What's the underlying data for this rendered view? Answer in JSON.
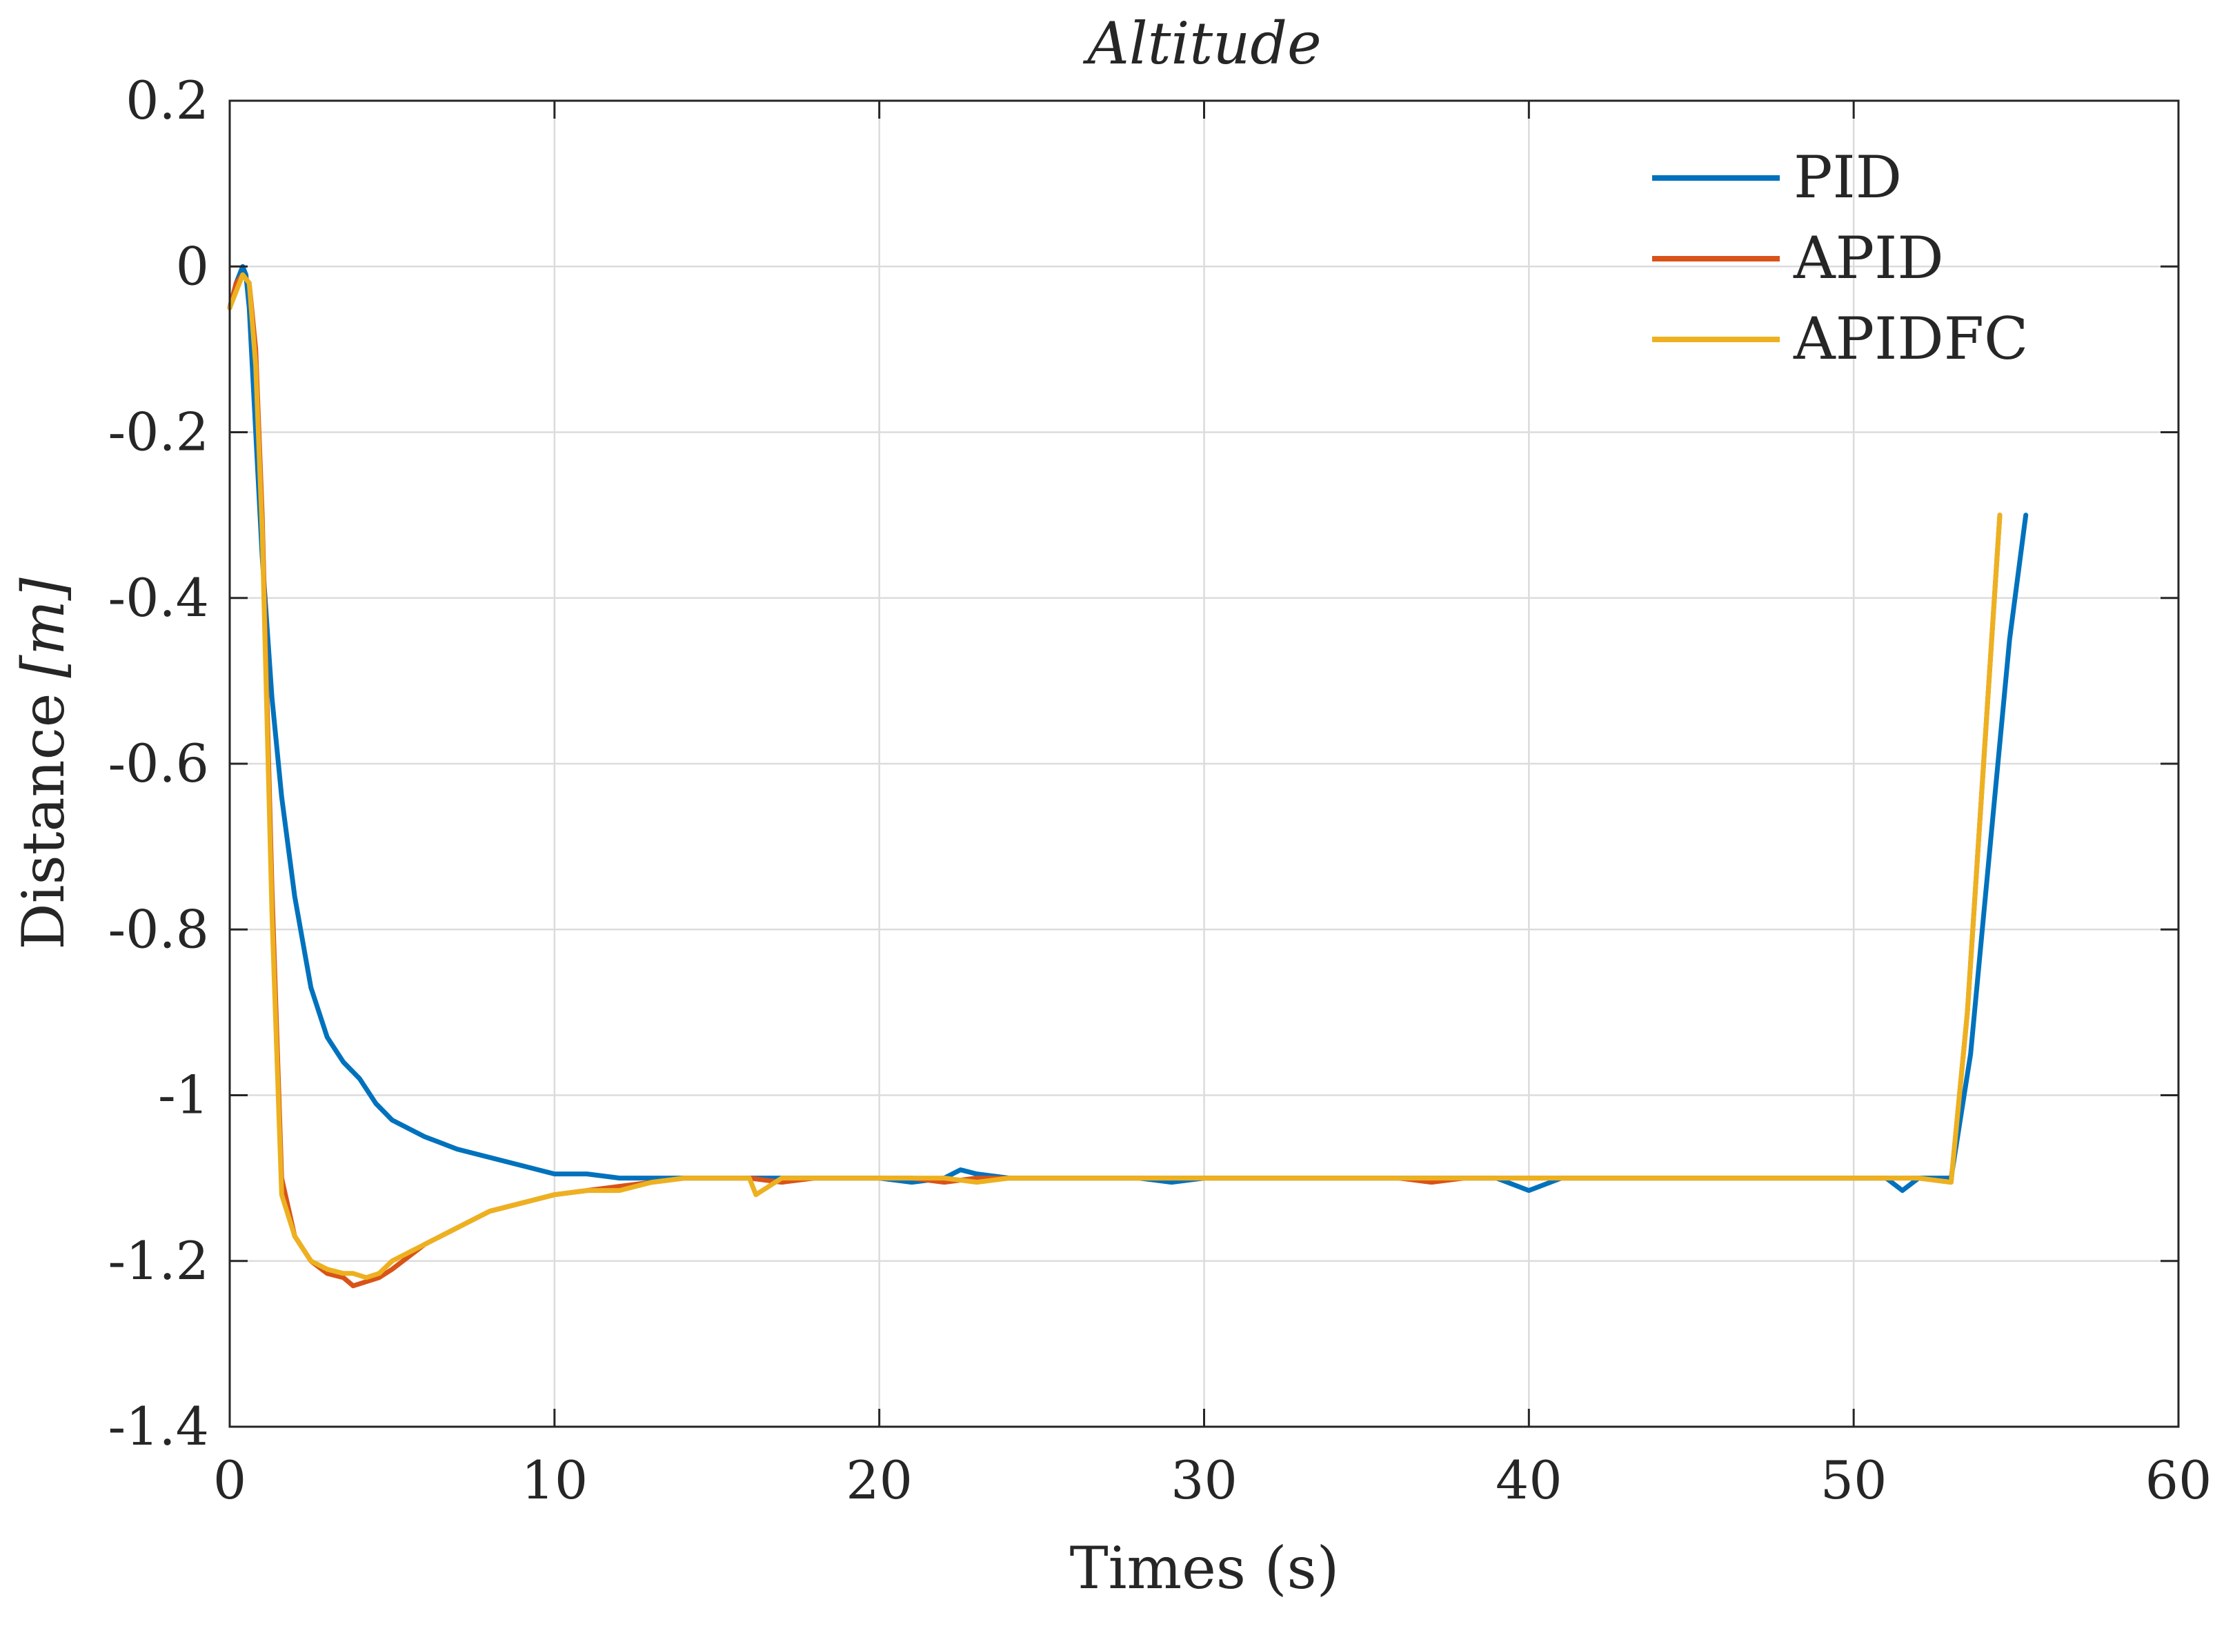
{
  "chart_data": {
    "type": "line",
    "title": "Altitude",
    "xlabel": "Times (s)",
    "ylabel": "Distance [m]",
    "ylabel_parts": {
      "text": "Distance",
      "unit": "[m]"
    },
    "xlim": [
      0,
      60
    ],
    "ylim": [
      -1.4,
      0.2
    ],
    "xticks": [
      0,
      10,
      20,
      30,
      40,
      50,
      60
    ],
    "xtick_labels": [
      "0",
      "10",
      "20",
      "30",
      "40",
      "50",
      "60"
    ],
    "yticks": [
      0.2,
      0,
      -0.2,
      -0.4,
      -0.6,
      -0.8,
      -1,
      -1.2,
      -1.4
    ],
    "ytick_labels": [
      "0.2",
      "0",
      "-0.2",
      "-0.4",
      "-0.6",
      "-0.8",
      "-1",
      "-1.2",
      "-1.4"
    ],
    "grid": true,
    "legend_position": "top-right",
    "series": [
      {
        "name": "PID",
        "color": "#0072BD",
        "x": [
          0,
          0.2,
          0.4,
          0.5,
          0.6,
          0.8,
          1.0,
          1.3,
          1.6,
          2.0,
          2.5,
          3.0,
          3.5,
          4.0,
          4.5,
          5.0,
          6.0,
          7.0,
          8.0,
          9.0,
          10.0,
          11.0,
          12.0,
          13.0,
          14.0,
          15.0,
          16.0,
          17.0,
          18.0,
          19.0,
          20.0,
          21.0,
          22.0,
          22.5,
          23.0,
          24.0,
          25.0,
          26.0,
          27.0,
          28.0,
          29.0,
          30.0,
          31.0,
          32.0,
          33.0,
          34.0,
          35.0,
          36.0,
          37.0,
          38.0,
          39.0,
          40.0,
          41.0,
          42.0,
          43.0,
          44.0,
          45.0,
          46.0,
          47.0,
          48.0,
          49.0,
          50.0,
          51.0,
          51.5,
          52.0,
          53.0,
          53.6,
          54.2,
          54.8,
          55.3
        ],
        "values": [
          -0.05,
          -0.02,
          0.0,
          -0.01,
          -0.05,
          -0.2,
          -0.35,
          -0.52,
          -0.64,
          -0.76,
          -0.87,
          -0.93,
          -0.96,
          -0.98,
          -1.01,
          -1.03,
          -1.05,
          -1.065,
          -1.075,
          -1.085,
          -1.095,
          -1.095,
          -1.1,
          -1.1,
          -1.1,
          -1.1,
          -1.1,
          -1.1,
          -1.1,
          -1.1,
          -1.1,
          -1.105,
          -1.1,
          -1.09,
          -1.095,
          -1.1,
          -1.1,
          -1.1,
          -1.1,
          -1.1,
          -1.105,
          -1.1,
          -1.1,
          -1.1,
          -1.1,
          -1.1,
          -1.1,
          -1.1,
          -1.1,
          -1.1,
          -1.1,
          -1.115,
          -1.1,
          -1.1,
          -1.1,
          -1.1,
          -1.1,
          -1.1,
          -1.1,
          -1.1,
          -1.1,
          -1.1,
          -1.1,
          -1.115,
          -1.1,
          -1.1,
          -0.95,
          -0.7,
          -0.45,
          -0.3
        ]
      },
      {
        "name": "APID",
        "color": "#D95319",
        "x": [
          0,
          0.2,
          0.4,
          0.6,
          0.8,
          1.0,
          1.3,
          1.6,
          2.0,
          2.5,
          3.0,
          3.5,
          3.8,
          4.2,
          4.6,
          5.0,
          6.0,
          7.0,
          8.0,
          9.0,
          10.0,
          11.0,
          12.0,
          13.0,
          14.0,
          15.0,
          16.0,
          17.0,
          18.0,
          19.0,
          20.0,
          21.0,
          22.0,
          23.0,
          24.0,
          25.0,
          26.0,
          27.0,
          28.0,
          29.0,
          30.0,
          31.0,
          32.0,
          33.0,
          34.0,
          35.0,
          36.0,
          37.0,
          38.0,
          39.0,
          40.0,
          41.0,
          42.0,
          43.0,
          44.0,
          45.0,
          46.0,
          47.0,
          48.0,
          49.0,
          50.0,
          51.0,
          52.0,
          53.0,
          53.5,
          54.0,
          54.5
        ],
        "values": [
          -0.05,
          -0.02,
          -0.01,
          -0.02,
          -0.1,
          -0.3,
          -0.75,
          -1.1,
          -1.17,
          -1.2,
          -1.215,
          -1.22,
          -1.23,
          -1.225,
          -1.22,
          -1.21,
          -1.18,
          -1.16,
          -1.14,
          -1.13,
          -1.12,
          -1.115,
          -1.11,
          -1.105,
          -1.1,
          -1.1,
          -1.1,
          -1.105,
          -1.1,
          -1.1,
          -1.1,
          -1.1,
          -1.105,
          -1.1,
          -1.1,
          -1.1,
          -1.1,
          -1.1,
          -1.1,
          -1.1,
          -1.1,
          -1.1,
          -1.1,
          -1.1,
          -1.1,
          -1.1,
          -1.1,
          -1.105,
          -1.1,
          -1.1,
          -1.1,
          -1.1,
          -1.1,
          -1.1,
          -1.1,
          -1.1,
          -1.1,
          -1.1,
          -1.1,
          -1.1,
          -1.1,
          -1.1,
          -1.1,
          -1.105,
          -0.9,
          -0.6,
          -0.3
        ]
      },
      {
        "name": "APIDFC",
        "color": "#EDB120",
        "x": [
          0,
          0.2,
          0.4,
          0.6,
          0.8,
          1.0,
          1.3,
          1.6,
          2.0,
          2.5,
          3.0,
          3.5,
          3.8,
          4.2,
          4.6,
          5.0,
          6.0,
          7.0,
          8.0,
          9.0,
          10.0,
          11.0,
          12.0,
          13.0,
          14.0,
          15.0,
          16.0,
          16.2,
          17.0,
          18.0,
          19.0,
          20.0,
          21.0,
          22.0,
          23.0,
          24.0,
          25.0,
          26.0,
          27.0,
          28.0,
          29.0,
          30.0,
          31.0,
          32.0,
          33.0,
          34.0,
          35.0,
          36.0,
          37.0,
          38.0,
          39.0,
          40.0,
          41.0,
          42.0,
          43.0,
          44.0,
          45.0,
          46.0,
          47.0,
          48.0,
          49.0,
          50.0,
          51.0,
          52.0,
          53.0,
          53.5,
          54.0,
          54.5
        ],
        "values": [
          -0.05,
          -0.03,
          -0.01,
          -0.02,
          -0.12,
          -0.32,
          -0.78,
          -1.12,
          -1.17,
          -1.2,
          -1.21,
          -1.215,
          -1.215,
          -1.22,
          -1.215,
          -1.2,
          -1.18,
          -1.16,
          -1.14,
          -1.13,
          -1.12,
          -1.115,
          -1.115,
          -1.105,
          -1.1,
          -1.1,
          -1.1,
          -1.12,
          -1.1,
          -1.1,
          -1.1,
          -1.1,
          -1.1,
          -1.1,
          -1.105,
          -1.1,
          -1.1,
          -1.1,
          -1.1,
          -1.1,
          -1.1,
          -1.1,
          -1.1,
          -1.1,
          -1.1,
          -1.1,
          -1.1,
          -1.1,
          -1.1,
          -1.1,
          -1.1,
          -1.1,
          -1.1,
          -1.1,
          -1.1,
          -1.1,
          -1.1,
          -1.1,
          -1.1,
          -1.1,
          -1.1,
          -1.1,
          -1.1,
          -1.1,
          -1.105,
          -0.9,
          -0.6,
          -0.3
        ]
      }
    ]
  }
}
